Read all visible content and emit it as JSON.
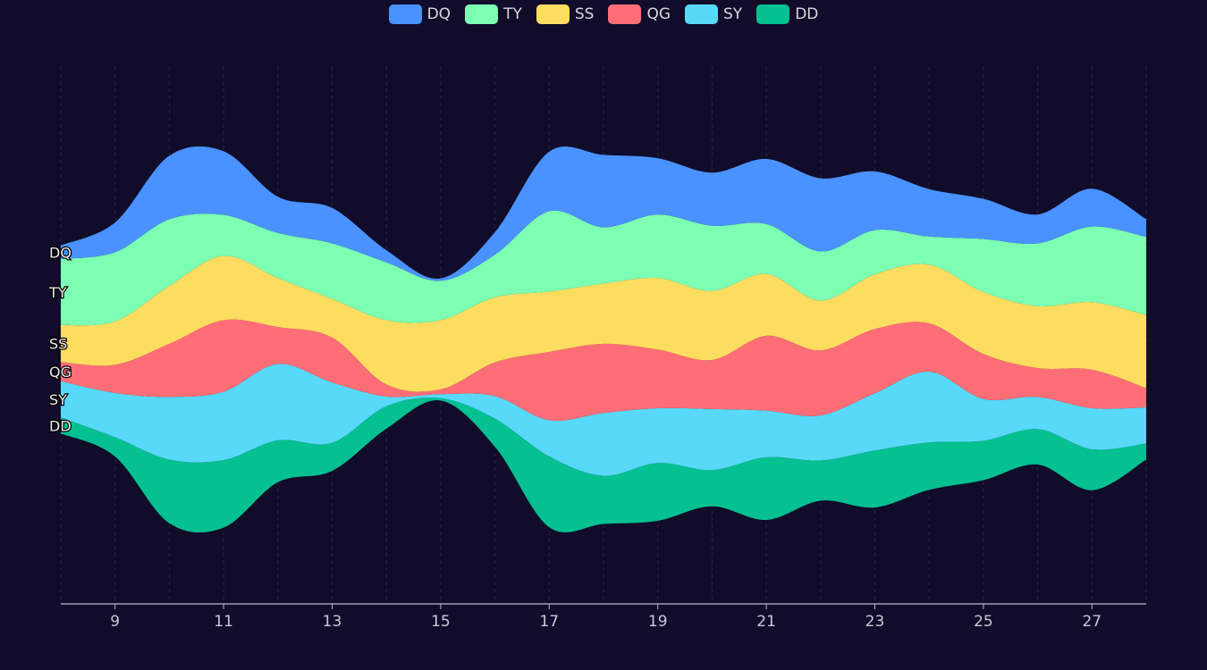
{
  "colors": {
    "background": "#100c2a",
    "DQ": "#4992ff",
    "TY": "#7cffb2",
    "SS": "#fddd60",
    "QG": "#ff6e76",
    "SY": "#58d9f9",
    "DD": "#05c091"
  },
  "chart_data": {
    "type": "area",
    "subtype": "streamgraph (ThemeRiver)",
    "legend_position": "top-center",
    "grid": "vertical dashed lines at day ticks",
    "x_range": [
      8,
      28
    ],
    "x_tick_labels": [
      "9",
      "11",
      "13",
      "15",
      "17",
      "19",
      "21",
      "23",
      "25",
      "27"
    ],
    "x": [
      8,
      9,
      10,
      11,
      12,
      13,
      14,
      15,
      16,
      17,
      18,
      19,
      20,
      21,
      22,
      23,
      24,
      25,
      26,
      27,
      28
    ],
    "series": [
      {
        "name": "DD",
        "values": [
          20,
          24,
          79,
          84,
          52,
          35,
          28,
          3,
          35,
          88,
          60,
          72,
          45,
          78,
          50,
          71,
          59,
          49,
          44,
          51,
          20
        ]
      },
      {
        "name": "SY",
        "values": [
          45,
          55,
          78,
          85,
          95,
          75,
          12,
          5,
          28,
          45,
          78,
          68,
          76,
          58,
          56,
          71,
          88,
          52,
          40,
          51,
          45
        ]
      },
      {
        "name": "QG",
        "values": [
          24,
          35,
          66,
          89,
          46,
          56,
          15,
          6,
          42,
          85,
          86,
          73,
          61,
          93,
          81,
          80,
          60,
          56,
          36,
          48,
          24
        ]
      },
      {
        "name": "SS",
        "values": [
          46,
          54,
          72,
          80,
          61,
          48,
          80,
          86,
          81,
          75,
          75,
          89,
          86,
          77,
          62,
          68,
          73,
          77,
          77,
          84,
          91
        ]
      },
      {
        "name": "TY",
        "values": [
          82,
          86,
          83,
          51,
          56,
          69,
          72,
          49,
          53,
          100,
          70,
          79,
          81,
          62,
          61,
          55,
          35,
          66,
          78,
          94,
          97
        ]
      },
      {
        "name": "DQ",
        "values": [
          17,
          37,
          79,
          79,
          45,
          44,
          15,
          3,
          28,
          74,
          90,
          70,
          66,
          81,
          91,
          73,
          59,
          50,
          36,
          47,
          22
        ]
      }
    ],
    "side_labels": [
      "DQ",
      "TY",
      "SS",
      "QG",
      "SY",
      "DD"
    ]
  }
}
